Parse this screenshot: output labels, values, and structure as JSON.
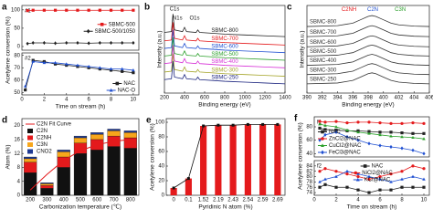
{
  "chart_data": [
    {
      "type": "line",
      "panel": "a",
      "tag": "#1",
      "ylabel": "Acetylene conversion (%)",
      "x": [
        0.5,
        1,
        2,
        3,
        4,
        5,
        6,
        7,
        8,
        9,
        10
      ],
      "xlim": [
        0,
        10.5
      ],
      "ylim": [
        -10,
        112
      ],
      "yticks": [
        0,
        50,
        100
      ],
      "legend": "center right",
      "series": [
        {
          "name": "SBMC-500",
          "color": "#e41a1c",
          "marker": "square",
          "values": [
            98,
            99,
            99,
            99,
            99,
            99,
            99,
            99,
            99,
            99,
            99
          ]
        },
        {
          "name": "SBMC-500/1050",
          "color": "#222222",
          "marker": "diamond",
          "values": [
            8,
            10,
            10,
            9,
            10,
            10,
            9,
            10,
            10,
            10,
            10
          ]
        }
      ]
    },
    {
      "type": "line",
      "tag": "#2",
      "xlabel": "Time on stream (h)",
      "x": [
        0.3,
        1,
        2,
        3,
        4,
        5,
        6,
        7,
        8,
        9,
        10
      ],
      "xlim": [
        0,
        10.5
      ],
      "xticks": [
        0,
        2,
        4,
        6,
        8,
        10
      ],
      "ylim": [
        48,
        82
      ],
      "yticks": [
        50,
        60,
        70,
        80
      ],
      "legend": "lower right",
      "series": [
        {
          "name": "NAC",
          "color": "#222222",
          "marker": "square",
          "values": [
            52,
            76,
            75,
            73,
            72,
            71,
            70,
            69,
            68,
            67,
            66
          ]
        },
        {
          "name": "NAC-O",
          "color": "#1f4fd1",
          "marker": "triangle",
          "values": [
            55,
            75,
            74,
            74,
            73,
            72,
            71,
            70,
            69,
            69,
            68
          ]
        }
      ]
    },
    {
      "type": "spectra",
      "panel": "b",
      "xlabel": "Binding energy (eV)",
      "ylabel": "Intensity (a.u.)",
      "label_side": "right",
      "x": [
        200,
        270,
        285,
        300,
        380,
        400,
        420,
        515,
        532,
        550,
        800,
        1000,
        1200,
        1400
      ],
      "xlim": [
        200,
        1400
      ],
      "xticks": [
        200,
        400,
        600,
        800,
        1000,
        1200,
        1400
      ],
      "ylim": [
        0,
        10.4
      ],
      "annotations": [
        {
          "text": "C1s",
          "x": 300,
          "y": 10.0,
          "color": "#222222"
        },
        {
          "text": "N1s",
          "x": 330,
          "y": 8.9,
          "color": "#222222"
        },
        {
          "text": "O1s",
          "x": 500,
          "y": 8.9,
          "color": "#222222"
        }
      ],
      "series": [
        {
          "name": "SBMC-800",
          "color": "#222222",
          "values": [
            7.2,
            7.3,
            9.4,
            7.5,
            7.3,
            7.8,
            7.3,
            7.2,
            7.5,
            7.2,
            7.0,
            6.9,
            6.8,
            6.7
          ]
        },
        {
          "name": "SBMC-700",
          "color": "#e41a1c",
          "values": [
            6.2,
            6.3,
            8.4,
            6.5,
            6.3,
            6.8,
            6.3,
            6.2,
            6.5,
            6.2,
            6.0,
            5.9,
            5.8,
            5.7
          ]
        },
        {
          "name": "SBMC-600",
          "color": "#1f4fd1",
          "values": [
            5.3,
            5.4,
            7.5,
            5.6,
            5.4,
            5.9,
            5.4,
            5.3,
            5.6,
            5.3,
            5.1,
            5.0,
            4.9,
            4.8
          ]
        },
        {
          "name": "SBMC-500",
          "color": "#2ca02c",
          "values": [
            4.4,
            4.5,
            6.6,
            4.7,
            4.5,
            5.0,
            4.5,
            4.4,
            4.7,
            4.4,
            4.2,
            4.1,
            4.0,
            3.9
          ]
        },
        {
          "name": "SBMC-400",
          "color": "#d62fd6",
          "values": [
            3.5,
            3.6,
            5.7,
            3.8,
            3.6,
            4.1,
            3.6,
            3.5,
            3.8,
            3.5,
            3.3,
            3.2,
            3.1,
            3.0
          ]
        },
        {
          "name": "SBMC-300",
          "color": "#a5a52a",
          "values": [
            2.5,
            2.6,
            4.7,
            2.8,
            2.6,
            3.1,
            2.6,
            2.5,
            2.8,
            2.5,
            2.3,
            2.2,
            2.1,
            2.0
          ]
        },
        {
          "name": "SBMC-250",
          "color": "#1a237e",
          "values": [
            1.6,
            1.7,
            3.8,
            1.9,
            1.7,
            2.2,
            1.7,
            1.6,
            1.9,
            1.6,
            1.4,
            1.3,
            1.2,
            1.1
          ]
        }
      ]
    },
    {
      "type": "spectra",
      "panel": "c",
      "xlabel": "Binding energy (eV)",
      "ylabel": "Intensity (a.u.)",
      "label_side": "left",
      "x": [
        390,
        394,
        396,
        397,
        398,
        398.5,
        399,
        400,
        401,
        402,
        404,
        406
      ],
      "xlim": [
        390,
        406
      ],
      "xticks": [
        390,
        392,
        394,
        396,
        398,
        400,
        402,
        404,
        406
      ],
      "ylim": [
        0,
        10.4
      ],
      "annotations": [
        {
          "text": "C2NH",
          "x": 395.5,
          "y": 9.9,
          "color": "#e41a1c"
        },
        {
          "text": "C2N",
          "x": 398.6,
          "y": 9.9,
          "color": "#1f4fd1"
        },
        {
          "text": "C3N",
          "x": 402.2,
          "y": 9.9,
          "color": "#2ca02c"
        }
      ],
      "series": [
        {
          "name": "SBMC-800",
          "color": "#333333",
          "values": [
            7.9,
            8.0,
            8.3,
            8.7,
            9.1,
            9.2,
            9.1,
            8.7,
            8.3,
            8.1,
            7.95,
            7.9
          ]
        },
        {
          "name": "SBMC-700",
          "color": "#333333",
          "values": [
            6.7,
            6.8,
            7.1,
            7.5,
            7.9,
            8.0,
            7.9,
            7.5,
            7.1,
            6.9,
            6.75,
            6.7
          ]
        },
        {
          "name": "SBMC-600",
          "color": "#333333",
          "values": [
            5.5,
            5.6,
            5.9,
            6.3,
            6.7,
            6.8,
            6.7,
            6.3,
            5.9,
            5.7,
            5.55,
            5.5
          ]
        },
        {
          "name": "SBMC-500",
          "color": "#333333",
          "values": [
            4.4,
            4.5,
            4.8,
            5.2,
            5.6,
            5.7,
            5.6,
            5.2,
            4.8,
            4.6,
            4.45,
            4.4
          ]
        },
        {
          "name": "SBMC-400",
          "color": "#333333",
          "values": [
            3.3,
            3.4,
            3.7,
            4.1,
            4.5,
            4.6,
            4.5,
            4.1,
            3.7,
            3.5,
            3.35,
            3.3
          ]
        },
        {
          "name": "SBMC-300",
          "color": "#333333",
          "values": [
            2.2,
            2.3,
            2.6,
            3.0,
            3.4,
            3.5,
            3.4,
            3.0,
            2.6,
            2.4,
            2.25,
            2.2
          ]
        },
        {
          "name": "SBMC-250",
          "color": "#333333",
          "values": [
            1.1,
            1.2,
            1.5,
            1.9,
            2.3,
            2.4,
            2.3,
            1.9,
            1.5,
            1.3,
            1.15,
            1.1
          ]
        }
      ]
    },
    {
      "type": "stacked_bar",
      "panel": "d",
      "xlabel": "Carbonization temperature (℃)",
      "ylabel": "Atom (%)",
      "categories": [
        "200",
        "300",
        "400",
        "500",
        "600",
        "700",
        "800"
      ],
      "ylim": [
        0,
        22
      ],
      "yticks": [
        0,
        4,
        8,
        12,
        16,
        20
      ],
      "legend": "upper left",
      "fit": {
        "name": "C2N Fit Curve",
        "color": "#e41a1c",
        "values": [
          1.5,
          6,
          10,
          12.8,
          14.5,
          15.5,
          16
        ]
      },
      "series": [
        {
          "name": "C2N",
          "color": "#111111",
          "values": [
            6.5,
            2,
            8,
            12,
            13,
            14,
            13.5
          ]
        },
        {
          "name": "C2NH",
          "color": "#e41a1c",
          "values": [
            3,
            0.8,
            3,
            3,
            3,
            3,
            3
          ]
        },
        {
          "name": "C3N",
          "color": "#f7a61b",
          "values": [
            1,
            0.5,
            1.5,
            1.5,
            1.5,
            1.5,
            1.5
          ]
        },
        {
          "name": "CNO2",
          "color": "#1f3a93",
          "values": [
            0.5,
            0.3,
            0.5,
            0.5,
            0.5,
            0.5,
            0.5
          ]
        }
      ]
    },
    {
      "type": "bar_line",
      "panel": "e",
      "xlabel": "Pyridinic N atom (%)",
      "ylabel": "Acetylene conversion (%)",
      "categories": [
        "0",
        "0.1",
        "1.52",
        "2.19",
        "2.43",
        "2.54",
        "2.59",
        "2.69"
      ],
      "ylim": [
        0,
        105
      ],
      "yticks": [
        0,
        20,
        40,
        60,
        80,
        100
      ],
      "color": "#e41a1c",
      "line_color": "#111111",
      "values": [
        10,
        23,
        95,
        96,
        96,
        97,
        97,
        97
      ]
    },
    {
      "type": "line",
      "panel": "f",
      "tag": "f1",
      "ylabel": "Acetylene conversion (%)",
      "x": [
        0.5,
        1,
        2,
        3,
        4,
        5,
        6,
        7,
        8,
        9,
        10
      ],
      "xlim": [
        0,
        10.5
      ],
      "ylim": [
        35,
        95
      ],
      "yticks": [
        40,
        60,
        80
      ],
      "legend": "lower left",
      "series": [
        {
          "name": "NAC",
          "color": "#222222",
          "marker": "square",
          "values": [
            78,
            76,
            75,
            74,
            74,
            73,
            72,
            72,
            71,
            70,
            70
          ]
        },
        {
          "name": "ZnCl2@NAC",
          "color": "#e41a1c",
          "marker": "circle",
          "values": [
            88,
            87,
            88,
            86,
            87,
            87,
            86,
            85,
            85,
            86,
            85
          ]
        },
        {
          "name": "CuCl2@NAC",
          "color": "#2ca02c",
          "marker": "triangle",
          "values": [
            84,
            82,
            80,
            75,
            72,
            70,
            68,
            66,
            65,
            64,
            62
          ]
        },
        {
          "name": "FeCl3@NAC",
          "color": "#1f4fd1",
          "marker": "diamond",
          "values": [
            60,
            68,
            72,
            65,
            60,
            55,
            52,
            50,
            48,
            45,
            40
          ]
        }
      ]
    },
    {
      "type": "line",
      "tag": "f2",
      "xlabel": "Time on stream (h)",
      "x": [
        0.5,
        1,
        2,
        3,
        4,
        5,
        6,
        7,
        8,
        9,
        10
      ],
      "xlim": [
        0,
        10.5
      ],
      "xticks": [
        0,
        2,
        4,
        6,
        8,
        10
      ],
      "ylim": [
        73,
        86
      ],
      "yticks": [
        74,
        76,
        78,
        80,
        82,
        84
      ],
      "legend": "upper center",
      "series": [
        {
          "name": "NAC",
          "color": "#222222",
          "marker": "square",
          "values": [
            76,
            77,
            76,
            76,
            75,
            74,
            75,
            75,
            76,
            76,
            76
          ]
        },
        {
          "name": "NiCl2@NAC",
          "color": "#e41a1c",
          "marker": "circle",
          "values": [
            82,
            83,
            82,
            81,
            80,
            79,
            80,
            81,
            82,
            84,
            83
          ]
        },
        {
          "name": "KCl@NAC",
          "color": "#1f4fd1",
          "marker": "triangle",
          "values": [
            78,
            79,
            80,
            82,
            81,
            80,
            79,
            78,
            79,
            80,
            79
          ]
        }
      ]
    }
  ]
}
